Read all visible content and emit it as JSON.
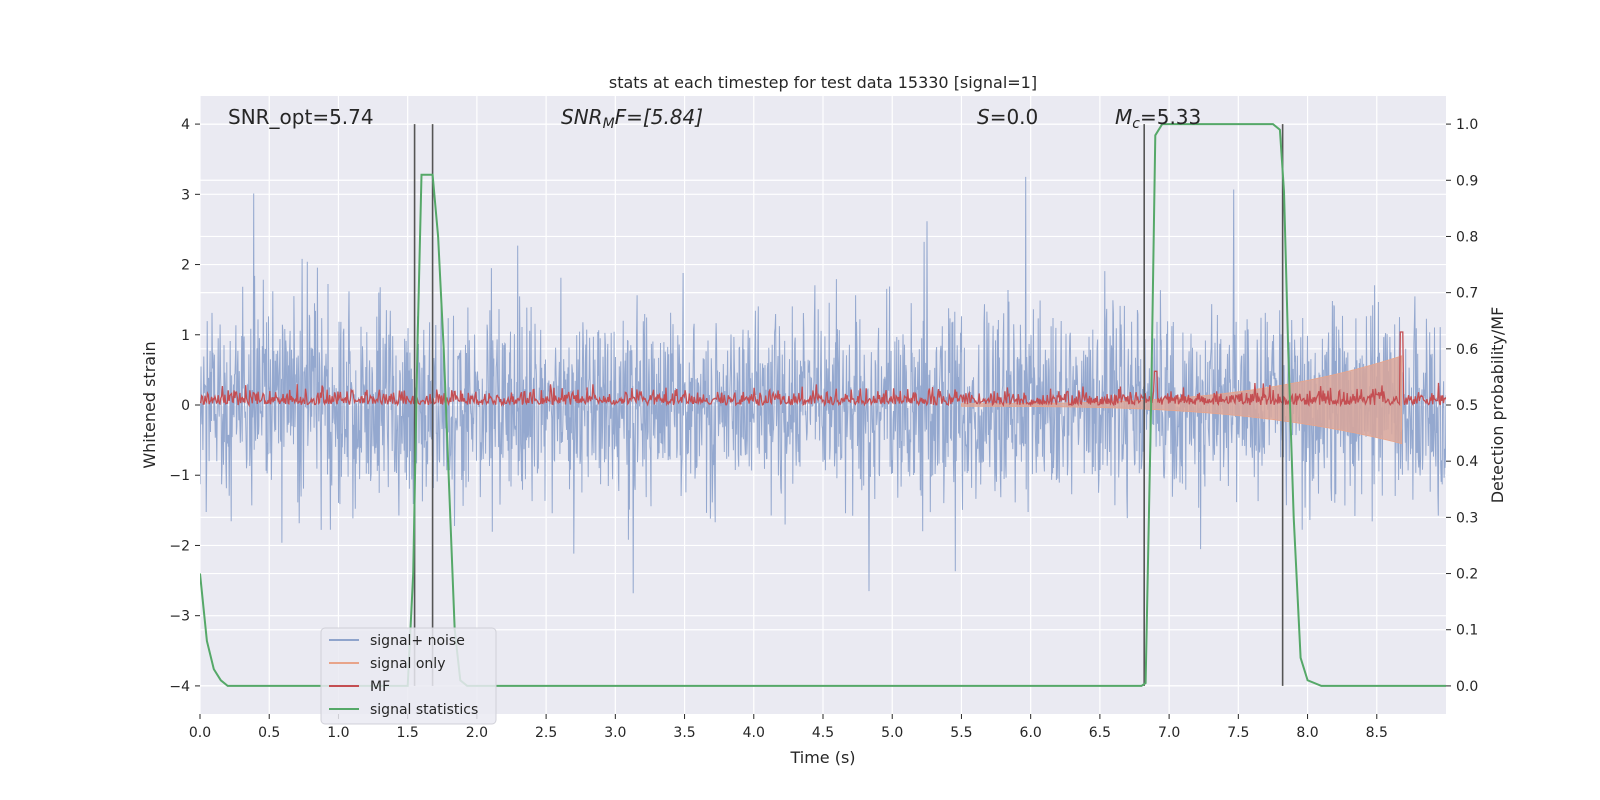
{
  "chart_data": {
    "type": "line",
    "title": "stats at each timestep for test data 15330 [signal=1]",
    "xlabel": "Time (s)",
    "ylabel_left": "Whitened strain",
    "ylabel_right": "Detection probability/MF",
    "xlim": [
      0.0,
      9.0
    ],
    "ylim_left": [
      -4.4,
      4.4
    ],
    "ylim_right": [
      -0.05,
      1.05
    ],
    "x_ticks": [
      "0.0",
      "0.5",
      "1.0",
      "1.5",
      "2.0",
      "2.5",
      "3.0",
      "3.5",
      "4.0",
      "4.5",
      "5.0",
      "5.5",
      "6.0",
      "6.5",
      "7.0",
      "7.5",
      "8.0",
      "8.5"
    ],
    "x_tick_values": [
      0.0,
      0.5,
      1.0,
      1.5,
      2.0,
      2.5,
      3.0,
      3.5,
      4.0,
      4.5,
      5.0,
      5.5,
      6.0,
      6.5,
      7.0,
      7.5,
      8.0,
      8.5
    ],
    "y_left_ticks": [
      "−4",
      "−3",
      "−2",
      "−1",
      "0",
      "1",
      "2",
      "3",
      "4"
    ],
    "y_left_tick_values": [
      -4,
      -3,
      -2,
      -1,
      0,
      1,
      2,
      3,
      4
    ],
    "y_right_ticks": [
      "0.0",
      "0.1",
      "0.2",
      "0.3",
      "0.4",
      "0.5",
      "0.6",
      "0.7",
      "0.8",
      "0.9",
      "1.0"
    ],
    "y_right_tick_values": [
      0.0,
      0.1,
      0.2,
      0.3,
      0.4,
      0.5,
      0.6,
      0.7,
      0.8,
      0.9,
      1.0
    ],
    "grid": true,
    "legend_position": "lower-left",
    "annotations": {
      "snr_opt": "SNR_opt=5.74",
      "snr_mf_main": "SNR",
      "snr_mf_sub": "M",
      "snr_mf_tail": "F=[5.84]",
      "s_main": "S",
      "s_tail": "=0.0",
      "mc_main": "M",
      "mc_sub": "c",
      "mc_tail": "=5.33"
    },
    "vertical_lines": [
      1.55,
      1.68,
      6.82,
      7.82
    ],
    "series": [
      {
        "name": "signal+ noise",
        "color": "#8fa4cc",
        "axis": "left",
        "span": [
          0.0,
          9.0
        ],
        "typical_band": [
          -1.6,
          1.6
        ],
        "peak_max": 4.0,
        "peak_min": -3.5
      },
      {
        "name": "signal only",
        "color": "#e8a48a",
        "axis": "left",
        "span": [
          5.5,
          8.68
        ],
        "envelope_end": [
          -0.55,
          0.7
        ]
      },
      {
        "name": "MF",
        "color": "#c44e52",
        "axis": "right",
        "span": [
          0.0,
          9.0
        ],
        "typical_range": [
          0.5,
          0.56
        ],
        "peaks": [
          {
            "x": 6.9,
            "y": 0.56
          },
          {
            "x": 8.68,
            "y": 0.63
          }
        ]
      },
      {
        "name": "signal statistics",
        "color": "#55a868",
        "axis": "right",
        "x": [
          0.0,
          0.05,
          0.1,
          0.15,
          0.2,
          0.3,
          0.5,
          1.0,
          1.5,
          1.54,
          1.57,
          1.6,
          1.64,
          1.68,
          1.72,
          1.76,
          1.8,
          1.84,
          1.88,
          1.93,
          2.0,
          3.0,
          4.0,
          5.0,
          6.0,
          6.5,
          6.8,
          6.83,
          6.87,
          6.9,
          6.95,
          7.0,
          7.5,
          7.75,
          7.8,
          7.83,
          7.86,
          7.9,
          7.95,
          8.0,
          8.1,
          9.0
        ],
        "y": [
          0.2,
          0.08,
          0.03,
          0.01,
          0.0,
          0.0,
          0.0,
          0.0,
          0.0,
          0.2,
          0.6,
          0.91,
          0.91,
          0.91,
          0.8,
          0.6,
          0.35,
          0.1,
          0.01,
          0.0,
          0.0,
          0.0,
          0.0,
          0.0,
          0.0,
          0.0,
          0.0,
          0.005,
          0.5,
          0.98,
          1.0,
          1.0,
          1.0,
          1.0,
          0.99,
          0.88,
          0.6,
          0.3,
          0.05,
          0.01,
          0.0,
          0.0
        ]
      }
    ]
  }
}
